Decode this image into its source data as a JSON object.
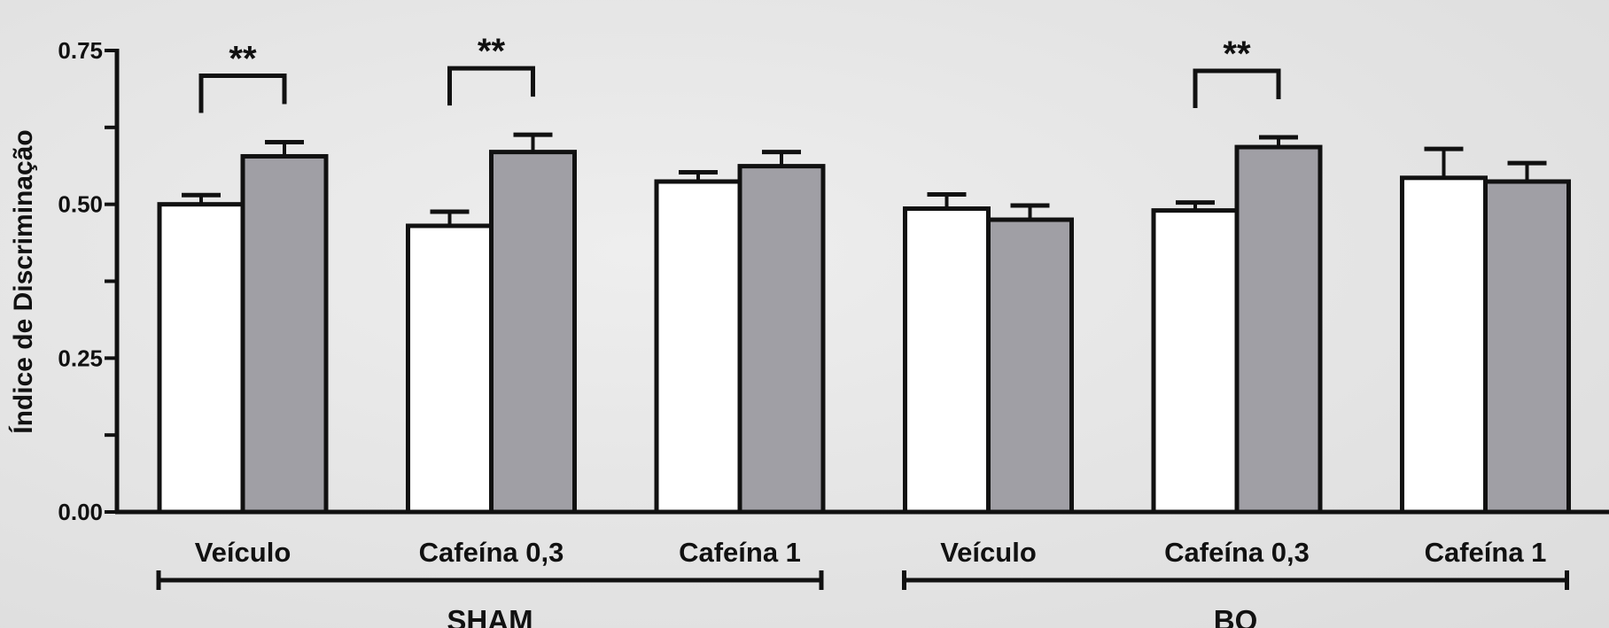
{
  "chart_data": {
    "type": "bar",
    "ylabel": "Índice de Discriminação",
    "ylim": [
      0,
      0.75
    ],
    "yticks": [
      "0.00",
      "0.25",
      "0.50",
      "0.75"
    ],
    "ytick_values": [
      0,
      0.25,
      0.5,
      0.75
    ],
    "categories": [
      "Veículo",
      "Cafeína 0,3",
      "Cafeína 1",
      "Veículo",
      "Cafeína 0,3",
      "Cafeína 1"
    ],
    "groups": [
      {
        "label": "SHAM",
        "categories": [
          0,
          1,
          2
        ]
      },
      {
        "label": "BO",
        "categories": [
          3,
          4,
          5
        ]
      }
    ],
    "series": [
      {
        "color": "#ffffff",
        "values": [
          0.5,
          0.465,
          0.537,
          0.493,
          0.49,
          0.543
        ],
        "errors": [
          0.015,
          0.023,
          0.015,
          0.023,
          0.013,
          0.047
        ]
      },
      {
        "color": "#a09fa5",
        "values": [
          0.578,
          0.585,
          0.562,
          0.475,
          0.593,
          0.537
        ],
        "errors": [
          0.023,
          0.028,
          0.023,
          0.023,
          0.016,
          0.03
        ]
      }
    ],
    "significance": [
      {
        "category": 0,
        "label": "**"
      },
      {
        "category": 1,
        "label": "**"
      },
      {
        "category": 4,
        "label": "**"
      }
    ],
    "grid": false,
    "legend": "none"
  }
}
